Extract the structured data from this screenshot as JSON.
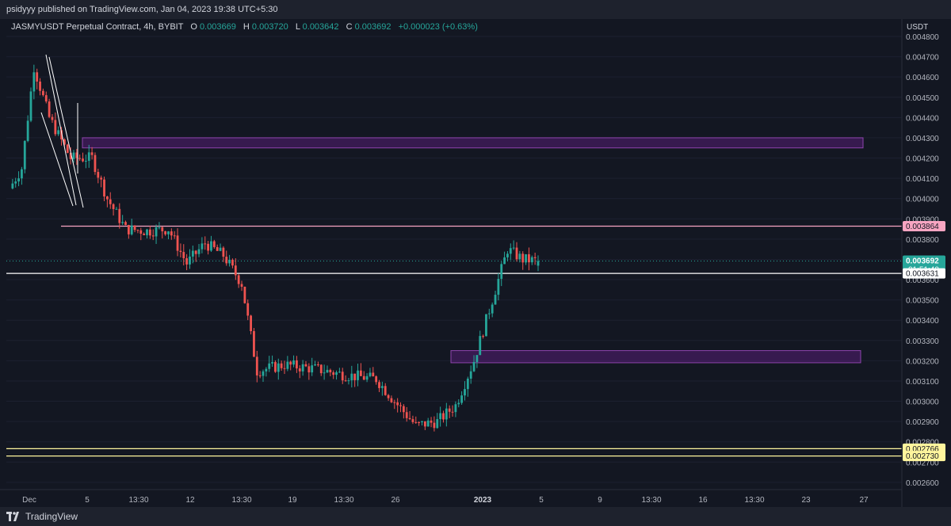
{
  "header": {
    "published_text": "psidyyy published on TradingView.com, Jan 04, 2023 19:38 UTC+5:30"
  },
  "legend": {
    "symbol": "JASMYUSDT Perpetual Contract, 4h, BYBIT",
    "o_label": "O",
    "o_value": "0.003669",
    "h_label": "H",
    "h_value": "0.003720",
    "l_label": "L",
    "l_value": "0.003642",
    "c_label": "C",
    "c_value": "0.003692",
    "change": "+0.000023 (+0.63%)"
  },
  "footer": {
    "brand": "TradingView"
  },
  "colors": {
    "bg": "#131722",
    "up": "#26a69a",
    "down": "#ef5350",
    "zone": "#7b1fa2",
    "pink": "#f8a5c2",
    "white": "#ffffff",
    "yellow": "#fff59d"
  },
  "chart_data": {
    "type": "candlestick",
    "currency": "USDT",
    "ylim": [
      0.00258,
      0.0048
    ],
    "y_ticks": [
      "0.004800",
      "0.004700",
      "0.004600",
      "0.004500",
      "0.004400",
      "0.004300",
      "0.004200",
      "0.004100",
      "0.004000",
      "0.003900",
      "0.003800",
      "0.003700",
      "0.003600",
      "0.003500",
      "0.003400",
      "0.003300",
      "0.003200",
      "0.003100",
      "0.003000",
      "0.002900",
      "0.002800",
      "0.002700",
      "0.002600"
    ],
    "x_ticks": [
      "Dec",
      "5",
      "13:30",
      "12",
      "13:30",
      "19",
      "13:30",
      "26",
      "2023",
      "5",
      "9",
      "13:30",
      "16",
      "13:30",
      "23",
      "27"
    ],
    "candle_range": {
      "first": "Dec 1",
      "last": "Jan 4"
    },
    "key_prices": [
      {
        "y": 0.003692,
        "open": 0.003669,
        "high": 0.00372,
        "low": 0.003642
      }
    ],
    "price_labels": [
      {
        "value": "0.003864",
        "price": 0.003864,
        "color": "#f8a5c2",
        "text_color": "#131722"
      },
      {
        "value": "0.003692",
        "price": 0.003692,
        "color": "#26a69a",
        "text_color": "#ffffff",
        "sub": "01:51:40"
      },
      {
        "value": "0.003631",
        "price": 0.003631,
        "color": "#ffffff",
        "text_color": "#131722"
      },
      {
        "value": "0.002766",
        "price": 0.002766,
        "color": "#fff59d",
        "text_color": "#131722"
      },
      {
        "value": "0.002730",
        "price": 0.00273,
        "color": "#fff59d",
        "text_color": "#131722"
      }
    ],
    "horizontal_lines": [
      {
        "price": 0.003864,
        "color": "#f8a5c2",
        "from_date": "Dec 3"
      },
      {
        "price": 0.003631,
        "color": "#ffffff",
        "from_date": "Dec 1"
      },
      {
        "price": 0.002766,
        "color": "#fff59d",
        "from_date": "Dec 1"
      },
      {
        "price": 0.00273,
        "color": "#fff59d",
        "from_date": "Dec 1"
      },
      {
        "price": 0.003692,
        "color": "#26a69a",
        "dotted": true,
        "from_date": "Dec 1"
      }
    ],
    "zones": [
      {
        "top": 0.0043,
        "bottom": 0.00425,
        "from_date": "Dec 4",
        "to_date": "Dec 27"
      },
      {
        "top": 0.00325,
        "bottom": 0.00319,
        "from_date": "Dec 27",
        "to_date": "Jan 27"
      }
    ]
  }
}
